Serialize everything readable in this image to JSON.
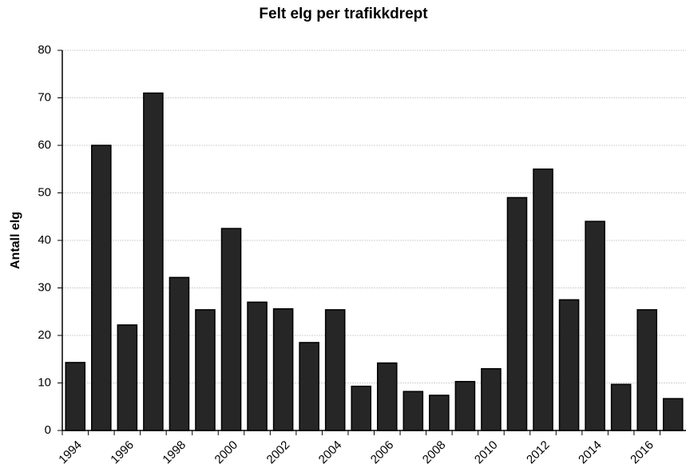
{
  "chart_data": {
    "type": "bar",
    "title": "Felt elg per trafikkdrept",
    "y_label": "Antall elg",
    "categories": [
      "1994",
      null,
      "1996",
      null,
      "1998",
      null,
      "2000",
      null,
      "2002",
      null,
      "2004",
      null,
      "2006",
      null,
      "2008",
      null,
      "2010",
      null,
      "2012",
      null,
      "2014",
      null,
      "2016",
      null
    ],
    "values": [
      14.3,
      60,
      22.2,
      71,
      32.2,
      25.4,
      42.5,
      27,
      25.6,
      18.5,
      25.4,
      9.3,
      14.2,
      8.2,
      7.4,
      10.3,
      13,
      49,
      55,
      27.5,
      44,
      9.7,
      25.4,
      6.7
    ],
    "color": "#262626",
    "ylim": [
      0,
      80
    ],
    "yticks": [
      0,
      10,
      20,
      30,
      40,
      50,
      60,
      70,
      80
    ],
    "grid": true
  }
}
